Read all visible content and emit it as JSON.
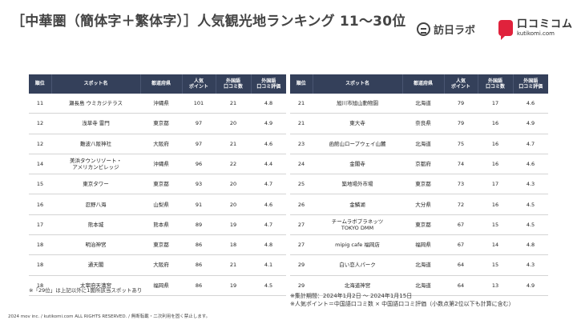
{
  "title": "［中華圏（簡体字＋繁体字）］人気観光地ランキング 11〜30位",
  "logos": {
    "houjin": "訪日ラボ",
    "kutikomi": "口コミコム",
    "kutikomi_url": "kutikomi.com",
    "kutikomi_color": "#e0223c"
  },
  "table": {
    "headers": {
      "rank": "順位",
      "spot": "スポット名",
      "pref": "都道府県",
      "points_1": "人気",
      "points_2": "ポイント",
      "reviews_1": "外国語",
      "reviews_2": "口コミ数",
      "rating_1": "外国語",
      "rating_2": "口コミ評価"
    },
    "header_color": "#34405a",
    "left_rows": [
      {
        "rank": "11",
        "spot_1": "瀬長島 ウミカジテラス",
        "spot_2": "",
        "pref": "沖縄県",
        "points": "101",
        "reviews": "21",
        "rating": "4.8"
      },
      {
        "rank": "12",
        "spot_1": "浅草寺 雷門",
        "spot_2": "",
        "pref": "東京都",
        "points": "97",
        "reviews": "20",
        "rating": "4.9"
      },
      {
        "rank": "12",
        "spot_1": "難波八阪神社",
        "spot_2": "",
        "pref": "大阪府",
        "points": "97",
        "reviews": "21",
        "rating": "4.6"
      },
      {
        "rank": "14",
        "spot_1": "美浜タウンリゾート・",
        "spot_2": "アメリカンビレッジ",
        "pref": "沖縄県",
        "points": "96",
        "reviews": "22",
        "rating": "4.4"
      },
      {
        "rank": "15",
        "spot_1": "東京タワー",
        "spot_2": "",
        "pref": "東京都",
        "points": "93",
        "reviews": "20",
        "rating": "4.7"
      },
      {
        "rank": "16",
        "spot_1": "忍野八海",
        "spot_2": "",
        "pref": "山梨県",
        "points": "91",
        "reviews": "20",
        "rating": "4.6"
      },
      {
        "rank": "17",
        "spot_1": "熊本城",
        "spot_2": "",
        "pref": "熊本県",
        "points": "89",
        "reviews": "19",
        "rating": "4.7"
      },
      {
        "rank": "18",
        "spot_1": "明治神宮",
        "spot_2": "",
        "pref": "東京都",
        "points": "86",
        "reviews": "18",
        "rating": "4.8"
      },
      {
        "rank": "18",
        "spot_1": "通天閣",
        "spot_2": "",
        "pref": "大阪府",
        "points": "86",
        "reviews": "21",
        "rating": "4.1"
      },
      {
        "rank": "18",
        "spot_1": "太宰府天満宮",
        "spot_2": "",
        "pref": "福岡県",
        "points": "86",
        "reviews": "19",
        "rating": "4.5"
      }
    ],
    "right_rows": [
      {
        "rank": "21",
        "spot_1": "旭川市旭山動物園",
        "spot_2": "",
        "pref": "北海道",
        "points": "79",
        "reviews": "17",
        "rating": "4.6"
      },
      {
        "rank": "21",
        "spot_1": "東大寺",
        "spot_2": "",
        "pref": "奈良県",
        "points": "79",
        "reviews": "16",
        "rating": "4.9"
      },
      {
        "rank": "23",
        "spot_1": "函館山ロープウェイ山麓",
        "spot_2": "",
        "pref": "北海道",
        "points": "75",
        "reviews": "16",
        "rating": "4.7"
      },
      {
        "rank": "24",
        "spot_1": "金閣寺",
        "spot_2": "",
        "pref": "京都府",
        "points": "74",
        "reviews": "16",
        "rating": "4.6"
      },
      {
        "rank": "25",
        "spot_1": "築地場外市場",
        "spot_2": "",
        "pref": "東京都",
        "points": "73",
        "reviews": "17",
        "rating": "4.3"
      },
      {
        "rank": "26",
        "spot_1": "金鱗湖",
        "spot_2": "",
        "pref": "大分県",
        "points": "72",
        "reviews": "16",
        "rating": "4.5"
      },
      {
        "rank": "27",
        "spot_1": "チームラボプラネッツ",
        "spot_2": "TOKYO DMM",
        "pref": "東京都",
        "points": "67",
        "reviews": "15",
        "rating": "4.5"
      },
      {
        "rank": "27",
        "spot_1": "mipig cafe 福岡店",
        "spot_2": "",
        "pref": "福岡県",
        "points": "67",
        "reviews": "14",
        "rating": "4.8"
      },
      {
        "rank": "29",
        "spot_1": "白い恋人パーク",
        "spot_2": "",
        "pref": "北海道",
        "points": "64",
        "reviews": "15",
        "rating": "4.3"
      },
      {
        "rank": "29",
        "spot_1": "北海道神宮",
        "spot_2": "",
        "pref": "北海道",
        "points": "64",
        "reviews": "13",
        "rating": "4.9"
      }
    ]
  },
  "notes": {
    "left": "※「29位」は上記以外に1箇所該当スポットあり",
    "period": "※集計期間：2024年1月2日 〜 2024年1月15日",
    "formula": "※人気ポイント＝中国語口コミ数 × 中国語口コミ評価（小数点第2位以下も計算に含む）"
  },
  "copyright": "2024 mov inc. / kutikomi.com ALL RIGHTS RESERVED. / 無断転載・二次利用を固く禁止します。"
}
